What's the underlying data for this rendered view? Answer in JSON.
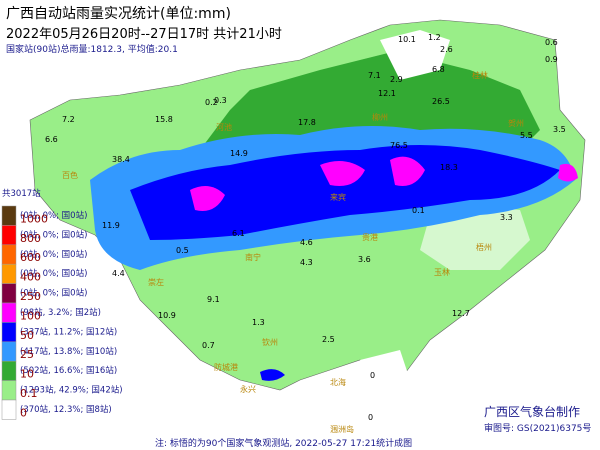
{
  "header": {
    "title": "广西自动站雨量实况统计(单位:mm)",
    "period": "2022年05月26日20时--27日17时  共计21小时",
    "stats": "国家站(90站)总雨量:1812.3, 平均值:20.1"
  },
  "legend": {
    "total": "共3017站",
    "thresholds": [
      "1000",
      "800",
      "600",
      "400",
      "250",
      "100",
      "50",
      "25",
      "10",
      "0.1",
      "0"
    ],
    "classes": [
      {
        "color": "#5a3a10",
        "text": "(0站, 0%; 国0站)"
      },
      {
        "color": "#ff0000",
        "text": "(0站, 0%; 国0站)"
      },
      {
        "color": "#ff6600",
        "text": "(0站, 0%; 国0站)"
      },
      {
        "color": "#ff9900",
        "text": "(0站, 0%; 国0站)"
      },
      {
        "color": "#800040",
        "text": "(0站, 0%; 国0站)"
      },
      {
        "color": "#ff00ff",
        "text": "(98站, 3.2%; 国2站)"
      },
      {
        "color": "#0000ff",
        "text": "(337站, 11.2%; 国12站)"
      },
      {
        "color": "#3399ff",
        "text": "(417站, 13.8%; 国10站)"
      },
      {
        "color": "#33aa33",
        "text": "(502站, 16.6%; 国16站)"
      },
      {
        "color": "#99ee88",
        "text": "(1293站, 42.9%; 国42站)"
      },
      {
        "color": "#ffffff",
        "text": "(370站, 12.3%; 国8站)"
      }
    ]
  },
  "stations": [
    "10.1",
    "1.2",
    "0.6",
    "0.9",
    "0.2",
    "2.6",
    "6.8",
    "7.1",
    "2.9",
    "26.5",
    "7.2",
    "15.8",
    "6.6",
    "17.8",
    "0.3",
    "12.1",
    "76.5",
    "38.4",
    "14.9",
    "18.3",
    "5.5",
    "3.5",
    "3.3",
    "11.9",
    "4.6",
    "0.5",
    "0.1",
    "6.1",
    "4.3",
    "3.6",
    "9.1",
    "10.9",
    "2.5",
    "12.7",
    "1.3",
    "0.7",
    "4.4",
    "0",
    "0"
  ],
  "cities": [
    "桂林",
    "河池",
    "柳州",
    "贺州",
    "百色",
    "来宾",
    "梧州",
    "南宁",
    "贵港",
    "崇左",
    "玉林",
    "钦州",
    "防城港",
    "北海",
    "涠洲岛",
    "永兴"
  ],
  "footer": {
    "note": "注: 标悟的为90个国家气象观测站, 2022-05-27 17:21统计成图",
    "agency": "广西区气象台制作",
    "approval": "审图号: GS(2021)6375号"
  }
}
